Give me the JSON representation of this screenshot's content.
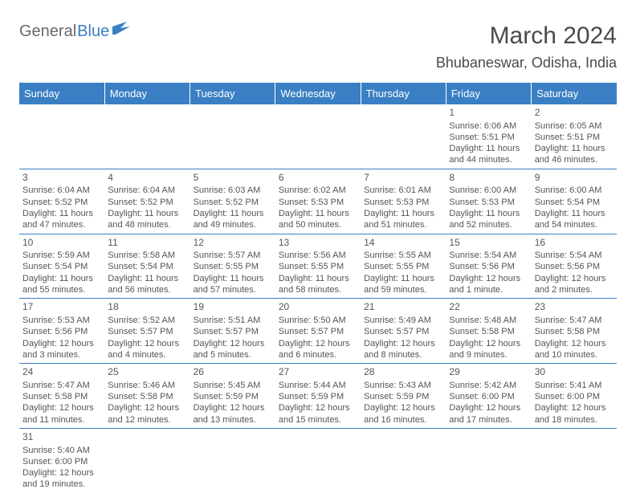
{
  "logo": {
    "text1": "General",
    "text2": "Blue"
  },
  "header": {
    "title": "March 2024",
    "location": "Bhubaneswar, Odisha, India"
  },
  "style": {
    "header_bg": "#3a7fc4",
    "header_fg": "#ffffff",
    "cell_border": "#3a7fc4",
    "body_text": "#555555",
    "page_bg": "#ffffff"
  },
  "day_headers": [
    "Sunday",
    "Monday",
    "Tuesday",
    "Wednesday",
    "Thursday",
    "Friday",
    "Saturday"
  ],
  "weeks": [
    [
      null,
      null,
      null,
      null,
      null,
      {
        "d": "1",
        "sr": "Sunrise: 6:06 AM",
        "ss": "Sunset: 5:51 PM",
        "dl1": "Daylight: 11 hours",
        "dl2": "and 44 minutes."
      },
      {
        "d": "2",
        "sr": "Sunrise: 6:05 AM",
        "ss": "Sunset: 5:51 PM",
        "dl1": "Daylight: 11 hours",
        "dl2": "and 46 minutes."
      }
    ],
    [
      {
        "d": "3",
        "sr": "Sunrise: 6:04 AM",
        "ss": "Sunset: 5:52 PM",
        "dl1": "Daylight: 11 hours",
        "dl2": "and 47 minutes."
      },
      {
        "d": "4",
        "sr": "Sunrise: 6:04 AM",
        "ss": "Sunset: 5:52 PM",
        "dl1": "Daylight: 11 hours",
        "dl2": "and 48 minutes."
      },
      {
        "d": "5",
        "sr": "Sunrise: 6:03 AM",
        "ss": "Sunset: 5:52 PM",
        "dl1": "Daylight: 11 hours",
        "dl2": "and 49 minutes."
      },
      {
        "d": "6",
        "sr": "Sunrise: 6:02 AM",
        "ss": "Sunset: 5:53 PM",
        "dl1": "Daylight: 11 hours",
        "dl2": "and 50 minutes."
      },
      {
        "d": "7",
        "sr": "Sunrise: 6:01 AM",
        "ss": "Sunset: 5:53 PM",
        "dl1": "Daylight: 11 hours",
        "dl2": "and 51 minutes."
      },
      {
        "d": "8",
        "sr": "Sunrise: 6:00 AM",
        "ss": "Sunset: 5:53 PM",
        "dl1": "Daylight: 11 hours",
        "dl2": "and 52 minutes."
      },
      {
        "d": "9",
        "sr": "Sunrise: 6:00 AM",
        "ss": "Sunset: 5:54 PM",
        "dl1": "Daylight: 11 hours",
        "dl2": "and 54 minutes."
      }
    ],
    [
      {
        "d": "10",
        "sr": "Sunrise: 5:59 AM",
        "ss": "Sunset: 5:54 PM",
        "dl1": "Daylight: 11 hours",
        "dl2": "and 55 minutes."
      },
      {
        "d": "11",
        "sr": "Sunrise: 5:58 AM",
        "ss": "Sunset: 5:54 PM",
        "dl1": "Daylight: 11 hours",
        "dl2": "and 56 minutes."
      },
      {
        "d": "12",
        "sr": "Sunrise: 5:57 AM",
        "ss": "Sunset: 5:55 PM",
        "dl1": "Daylight: 11 hours",
        "dl2": "and 57 minutes."
      },
      {
        "d": "13",
        "sr": "Sunrise: 5:56 AM",
        "ss": "Sunset: 5:55 PM",
        "dl1": "Daylight: 11 hours",
        "dl2": "and 58 minutes."
      },
      {
        "d": "14",
        "sr": "Sunrise: 5:55 AM",
        "ss": "Sunset: 5:55 PM",
        "dl1": "Daylight: 11 hours",
        "dl2": "and 59 minutes."
      },
      {
        "d": "15",
        "sr": "Sunrise: 5:54 AM",
        "ss": "Sunset: 5:56 PM",
        "dl1": "Daylight: 12 hours",
        "dl2": "and 1 minute."
      },
      {
        "d": "16",
        "sr": "Sunrise: 5:54 AM",
        "ss": "Sunset: 5:56 PM",
        "dl1": "Daylight: 12 hours",
        "dl2": "and 2 minutes."
      }
    ],
    [
      {
        "d": "17",
        "sr": "Sunrise: 5:53 AM",
        "ss": "Sunset: 5:56 PM",
        "dl1": "Daylight: 12 hours",
        "dl2": "and 3 minutes."
      },
      {
        "d": "18",
        "sr": "Sunrise: 5:52 AM",
        "ss": "Sunset: 5:57 PM",
        "dl1": "Daylight: 12 hours",
        "dl2": "and 4 minutes."
      },
      {
        "d": "19",
        "sr": "Sunrise: 5:51 AM",
        "ss": "Sunset: 5:57 PM",
        "dl1": "Daylight: 12 hours",
        "dl2": "and 5 minutes."
      },
      {
        "d": "20",
        "sr": "Sunrise: 5:50 AM",
        "ss": "Sunset: 5:57 PM",
        "dl1": "Daylight: 12 hours",
        "dl2": "and 6 minutes."
      },
      {
        "d": "21",
        "sr": "Sunrise: 5:49 AM",
        "ss": "Sunset: 5:57 PM",
        "dl1": "Daylight: 12 hours",
        "dl2": "and 8 minutes."
      },
      {
        "d": "22",
        "sr": "Sunrise: 5:48 AM",
        "ss": "Sunset: 5:58 PM",
        "dl1": "Daylight: 12 hours",
        "dl2": "and 9 minutes."
      },
      {
        "d": "23",
        "sr": "Sunrise: 5:47 AM",
        "ss": "Sunset: 5:58 PM",
        "dl1": "Daylight: 12 hours",
        "dl2": "and 10 minutes."
      }
    ],
    [
      {
        "d": "24",
        "sr": "Sunrise: 5:47 AM",
        "ss": "Sunset: 5:58 PM",
        "dl1": "Daylight: 12 hours",
        "dl2": "and 11 minutes."
      },
      {
        "d": "25",
        "sr": "Sunrise: 5:46 AM",
        "ss": "Sunset: 5:58 PM",
        "dl1": "Daylight: 12 hours",
        "dl2": "and 12 minutes."
      },
      {
        "d": "26",
        "sr": "Sunrise: 5:45 AM",
        "ss": "Sunset: 5:59 PM",
        "dl1": "Daylight: 12 hours",
        "dl2": "and 13 minutes."
      },
      {
        "d": "27",
        "sr": "Sunrise: 5:44 AM",
        "ss": "Sunset: 5:59 PM",
        "dl1": "Daylight: 12 hours",
        "dl2": "and 15 minutes."
      },
      {
        "d": "28",
        "sr": "Sunrise: 5:43 AM",
        "ss": "Sunset: 5:59 PM",
        "dl1": "Daylight: 12 hours",
        "dl2": "and 16 minutes."
      },
      {
        "d": "29",
        "sr": "Sunrise: 5:42 AM",
        "ss": "Sunset: 6:00 PM",
        "dl1": "Daylight: 12 hours",
        "dl2": "and 17 minutes."
      },
      {
        "d": "30",
        "sr": "Sunrise: 5:41 AM",
        "ss": "Sunset: 6:00 PM",
        "dl1": "Daylight: 12 hours",
        "dl2": "and 18 minutes."
      }
    ],
    [
      {
        "d": "31",
        "sr": "Sunrise: 5:40 AM",
        "ss": "Sunset: 6:00 PM",
        "dl1": "Daylight: 12 hours",
        "dl2": "and 19 minutes."
      },
      null,
      null,
      null,
      null,
      null,
      null
    ]
  ]
}
